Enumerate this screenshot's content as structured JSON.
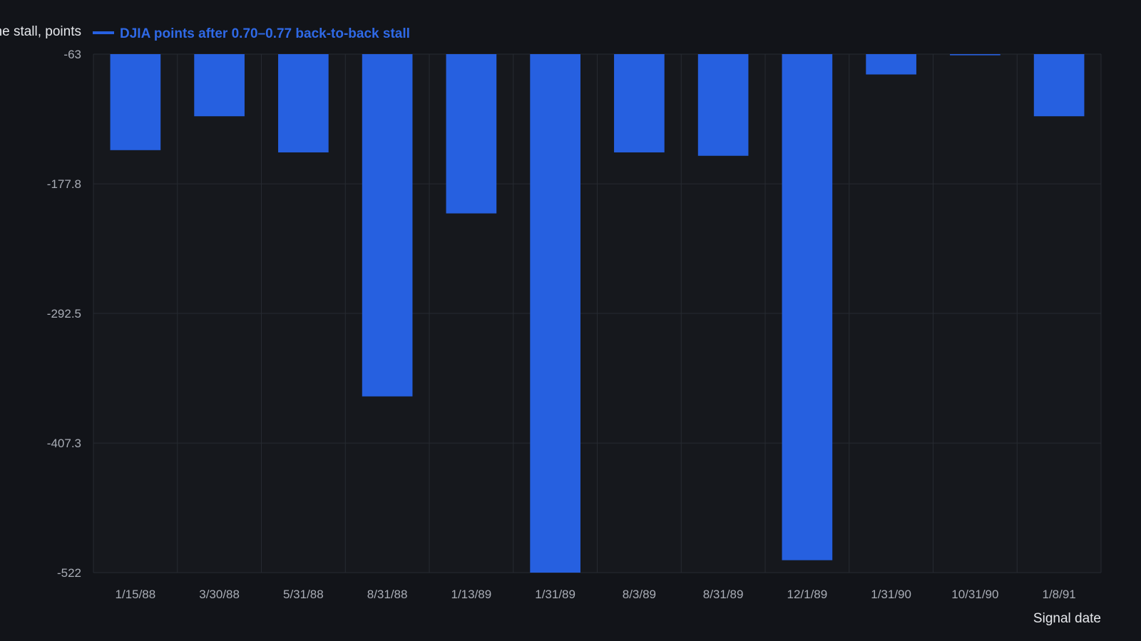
{
  "chart_data": {
    "type": "bar",
    "xlabel": "Signal date",
    "ylabel": "the stall, points",
    "legend": {
      "placement": "top-left",
      "entries": [
        {
          "label": "DJIA points after 0.70–0.77 back-to-back stall",
          "color": "#2660e0"
        }
      ]
    },
    "categories": [
      "1/15/88",
      "3/30/88",
      "5/31/88",
      "8/31/88",
      "1/13/89",
      "1/31/89",
      "8/3/89",
      "8/31/89",
      "12/1/89",
      "1/31/90",
      "10/31/90",
      "1/8/91"
    ],
    "series": [
      {
        "name": "DJIA points after 0.70–0.77 back-to-back stall",
        "values": [
          -148,
          -118,
          -150,
          -366,
          -204,
          -522,
          -150,
          -153,
          -511,
          -81,
          -64,
          -118
        ]
      }
    ],
    "ylim": [
      -522,
      -63
    ],
    "yticks": [
      -63,
      -177.8,
      -292.5,
      -407.3,
      -522
    ],
    "ytick_labels": [
      "-63",
      "-177.8",
      "-292.5",
      "-407.3",
      "-522"
    ],
    "grid": true,
    "colors": {
      "bar": "#2660e0",
      "legend_text": "#2f69e6",
      "background": "#121419",
      "plot_background": "#16181d",
      "grid": "#262a31",
      "tick_text": "#a9adb6",
      "axis_title_text": "#e6e8ec"
    }
  }
}
